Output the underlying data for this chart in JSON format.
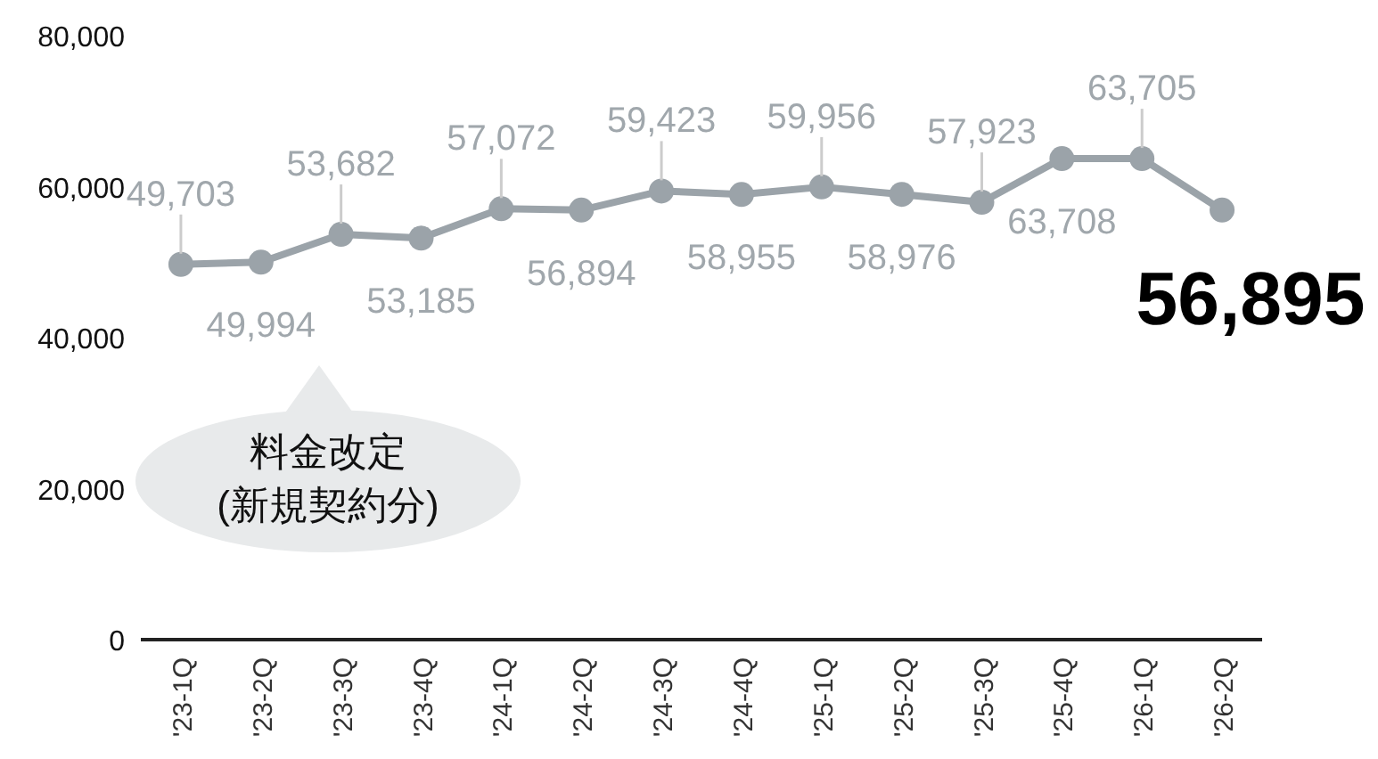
{
  "chart_data": {
    "type": "line",
    "categories": [
      "'23-1Q",
      "'23-2Q",
      "'23-3Q",
      "'23-4Q",
      "'24-1Q",
      "'24-2Q",
      "'24-3Q",
      "'24-4Q",
      "'25-1Q",
      "'25-2Q",
      "'25-3Q",
      "'25-4Q",
      "'26-1Q",
      "'26-2Q"
    ],
    "series": [
      {
        "color": "#9ba3a9",
        "values": [
          49703,
          49994,
          53682,
          53185,
          57072,
          56894,
          59423,
          58955,
          59956,
          58976,
          57923,
          63708,
          63705,
          56895
        ],
        "value_labels": [
          "49,703",
          "49,994",
          "53,682",
          "53,185",
          "57,072",
          "56,894",
          "59,423",
          "58,955",
          "59,956",
          "58,976",
          "57,923",
          "63,708",
          "63,705",
          "56,895"
        ]
      }
    ],
    "ylim": [
      0,
      80000
    ],
    "yticks": [
      {
        "value": 0,
        "label": "0"
      },
      {
        "value": 20000,
        "label": "20,000"
      },
      {
        "value": 40000,
        "label": "40,000"
      },
      {
        "value": 60000,
        "label": "60,000"
      },
      {
        "value": 80000,
        "label": "80,000"
      }
    ],
    "marker": "circle",
    "line_style": "solid",
    "grid": false,
    "annotations": [
      "料金改定\n(新規契約分)"
    ]
  }
}
